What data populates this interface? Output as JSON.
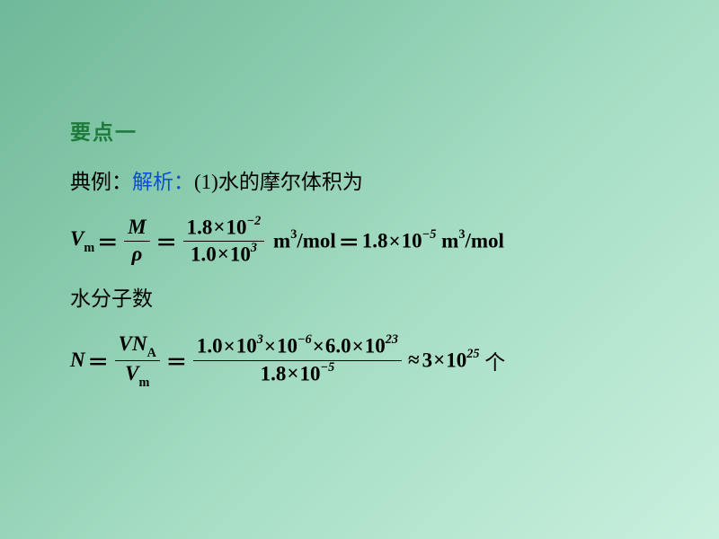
{
  "background": {
    "gradient_start": "#6fb898",
    "gradient_end": "#c9f0de"
  },
  "text_colors": {
    "heading": "#1e7a3a",
    "answer_label": "#0b4fd6",
    "body": "#000000"
  },
  "heading": "要点一",
  "example_prefix": "典例：",
  "answer_label": "解析：",
  "part1_label": "(1)",
  "part1_text": "水的摩尔体积为",
  "eq1": {
    "lhs_var": "V",
    "lhs_sub": "m",
    "frac1": {
      "num_var": "M",
      "den_var": "ρ"
    },
    "frac2": {
      "num_coeff": "1.8",
      "num_exp": "−2",
      "den_coeff": "1.0",
      "den_exp": "3"
    },
    "unit1_base": "m",
    "unit1_exp": "3",
    "unit1_per": "/mol",
    "result_coeff": "1.8",
    "result_exp": "−5",
    "unit2_base": "m",
    "unit2_exp": "3",
    "unit2_per": "/mol"
  },
  "part2_text": "水分子数",
  "eq2": {
    "lhs_var": "N",
    "frac1": {
      "num_v": "V",
      "num_n": "N",
      "num_sub": "A",
      "den_v": "V",
      "den_sub": "m"
    },
    "frac2": {
      "num_a_coeff": "1.0",
      "num_a_exp": "3",
      "num_b_exp": "−6",
      "num_c_coeff": "6.0",
      "num_c_exp": "23",
      "den_coeff": "1.8",
      "den_exp": "−5"
    },
    "approx": "≈",
    "result_coeff": "3",
    "result_exp": "25",
    "result_unit": "个"
  },
  "constants": {
    "ten": "10",
    "times": "×",
    "equals": "＝"
  }
}
